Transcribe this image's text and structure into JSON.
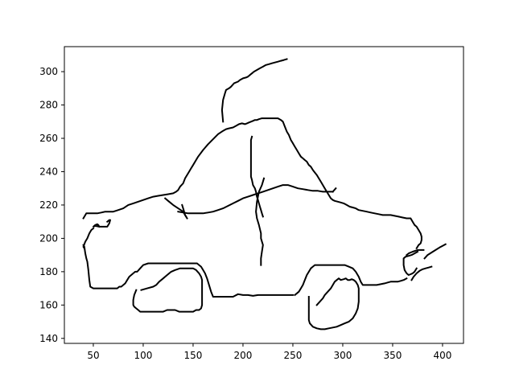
{
  "chart_data": {
    "type": "line",
    "title": "",
    "xlabel": "",
    "ylabel": "",
    "xlim": [
      21,
      421
    ],
    "ylim": [
      137,
      315
    ],
    "grid": false,
    "legend": "none",
    "line_color": "#000000",
    "x_ticks": [
      50,
      100,
      150,
      200,
      250,
      300,
      350,
      400
    ],
    "y_ticks": [
      140,
      160,
      180,
      200,
      220,
      240,
      260,
      280,
      300
    ],
    "x_tick_labels": [
      "50",
      "100",
      "150",
      "200",
      "250",
      "300",
      "350",
      "400"
    ],
    "y_tick_labels": [
      "140",
      "160",
      "180",
      "200",
      "220",
      "240",
      "260",
      "280",
      "300"
    ],
    "series": [
      {
        "x": [
          180,
          179,
          180,
          182,
          183,
          186,
          188,
          191,
          195,
          197,
          200,
          203,
          205,
          207,
          209,
          211,
          214,
          217,
          220,
          223,
          226,
          229,
          232,
          235,
          238,
          241,
          244
        ],
        "y": [
          270,
          277,
          283,
          287,
          289,
          290,
          291,
          293,
          294,
          295,
          296,
          296.5,
          297,
          298,
          299,
          300,
          301,
          302,
          303,
          304,
          304.5,
          305,
          305.5,
          306,
          306.5,
          307,
          307.5
        ]
      },
      {
        "x": [
          40,
          43,
          46,
          50,
          54,
          58,
          62,
          66,
          70,
          75,
          80,
          85,
          90,
          95,
          100,
          105,
          110,
          115,
          120,
          125,
          130,
          133,
          135,
          137,
          140,
          142,
          144,
          146,
          148,
          150,
          155,
          160,
          165,
          170,
          175,
          180,
          183,
          186,
          190,
          193,
          196,
          199,
          202,
          204,
          206,
          208,
          210,
          212,
          214,
          216,
          219,
          221,
          223,
          226,
          229,
          232,
          235,
          238,
          240,
          242,
          244,
          246,
          248,
          250,
          252,
          254,
          256,
          258,
          260,
          262,
          264,
          266,
          268,
          270,
          272,
          274,
          276,
          278,
          280,
          282,
          284,
          286,
          288,
          290,
          292,
          295,
          298,
          301,
          304,
          307,
          310,
          313,
          316,
          320,
          324,
          328,
          332,
          336,
          340,
          344,
          348,
          352,
          356,
          360,
          364,
          368,
          370,
          372,
          374,
          376,
          378,
          379,
          379,
          378,
          376,
          374
        ],
        "y": [
          212,
          215,
          215,
          215,
          215,
          215.5,
          216,
          216,
          216,
          217,
          218,
          220,
          221,
          222,
          223,
          224,
          225,
          225.5,
          226,
          226.5,
          227,
          228,
          229,
          231,
          233,
          236,
          238,
          240,
          242,
          244,
          249,
          253,
          256.5,
          259.5,
          262.5,
          264.5,
          265.5,
          266,
          266.5,
          267.5,
          268.5,
          269,
          268.5,
          269,
          269.5,
          270,
          270.5,
          271,
          271,
          271.5,
          272,
          272,
          272,
          272,
          272,
          272,
          272,
          271,
          270,
          267,
          264,
          262,
          259,
          257,
          255,
          253,
          251,
          249,
          248,
          247,
          246,
          244,
          243,
          241,
          239.5,
          238,
          236,
          234,
          232,
          230,
          228,
          226,
          224,
          223,
          222.5,
          222,
          221.5,
          221,
          220,
          219,
          218.5,
          218,
          217,
          216.5,
          216,
          215.5,
          215,
          214.5,
          214,
          214,
          214,
          213.5,
          213,
          212.5,
          212,
          212,
          210,
          208,
          207,
          205,
          203,
          201,
          199,
          197,
          196,
          194
        ]
      },
      {
        "x": [
          375,
          372,
          369,
          366,
          363,
          361,
          361,
          362,
          364,
          366,
          368,
          370,
          372,
          374
        ],
        "y": [
          192,
          191,
          190,
          189.5,
          189,
          188,
          184,
          181,
          179,
          178,
          178.5,
          179,
          180,
          182
        ]
      },
      {
        "x": [
          381,
          375,
          370,
          366,
          364
        ],
        "y": [
          193,
          193,
          192,
          191,
          190
        ]
      },
      {
        "x": [
          382,
          385,
          389,
          393,
          397,
          400,
          403
        ],
        "y": [
          188,
          190,
          191.5,
          193,
          194.5,
          195.5,
          196.5
        ]
      },
      {
        "x": [
          369,
          371,
          374,
          377,
          380,
          383,
          386,
          389
        ],
        "y": [
          175,
          177,
          179,
          180.5,
          181.5,
          182,
          182.5,
          183
        ]
      },
      {
        "x": [
          364,
          361,
          358,
          355,
          351,
          348,
          345,
          342,
          338,
          334,
          330,
          326,
          322,
          320,
          318,
          316,
          313,
          310,
          306,
          302,
          298,
          294,
          290,
          286,
          282,
          278,
          275,
          272,
          270,
          268,
          266,
          264,
          262,
          260,
          258,
          256,
          254,
          252
        ],
        "y": [
          176,
          175,
          174.5,
          174,
          174,
          174,
          173.5,
          173,
          172.5,
          172,
          172,
          172,
          172,
          172,
          174,
          177,
          180,
          182,
          183,
          184,
          184,
          184,
          184,
          184,
          184,
          184,
          184,
          184,
          183,
          182,
          180,
          178,
          175,
          172,
          170,
          168,
          167,
          166
        ]
      },
      {
        "x": [
          250,
          245,
          240,
          235,
          230,
          225,
          220,
          215,
          210,
          205,
          200,
          195,
          190,
          185,
          180,
          175,
          170,
          168,
          166,
          164,
          162,
          160,
          158,
          156,
          154,
          152,
          150,
          145,
          140,
          135,
          130,
          125,
          120,
          115,
          110,
          105,
          100,
          97,
          94,
          92,
          90,
          88,
          86,
          84,
          82,
          80,
          78,
          76,
          74,
          70,
          65,
          60,
          55,
          50,
          47,
          46,
          45,
          44,
          43,
          42,
          41,
          40
        ],
        "y": [
          166,
          166,
          166,
          166,
          166,
          166,
          166,
          166,
          165.5,
          166,
          166,
          166.5,
          165,
          165,
          165,
          165,
          165,
          168,
          172,
          176,
          179,
          181,
          183,
          184,
          185,
          185,
          185,
          185,
          185,
          185,
          185,
          185,
          185,
          185,
          185,
          185,
          184,
          182,
          180,
          180,
          179,
          178,
          177,
          175,
          173,
          172,
          171,
          171,
          170,
          170,
          170,
          170,
          170,
          170,
          171,
          175,
          181,
          186,
          188,
          191,
          195,
          196
        ]
      },
      {
        "x": [
          50,
          48,
          46,
          44,
          42,
          40,
          41
        ],
        "y": [
          206,
          205,
          203,
          200,
          198,
          195,
          194
        ]
      },
      {
        "x": [
          56,
          55,
          54,
          52,
          50,
          52,
          56,
          60,
          64,
          66,
          67,
          66,
          64
        ],
        "y": [
          207,
          208,
          208.5,
          208,
          207,
          207.5,
          207,
          207,
          207,
          209,
          211,
          211,
          210
        ]
      },
      {
        "x": [
          218,
          218,
          219,
          220,
          218,
          218,
          216,
          214,
          213,
          214,
          216,
          219,
          221
        ],
        "y": [
          184,
          188,
          192,
          196,
          200,
          203,
          208,
          212,
          216,
          222,
          228,
          232,
          236
        ]
      },
      {
        "x": [
          209,
          208,
          208,
          208,
          208,
          208,
          208,
          208,
          209,
          210,
          212,
          213,
          214,
          215,
          216,
          217,
          218,
          219,
          220
        ],
        "y": [
          261,
          259,
          255,
          250,
          245,
          240,
          238,
          237,
          235,
          232,
          230,
          228,
          225,
          223,
          221,
          219,
          217,
          215,
          213
        ]
      },
      {
        "x": [
          135,
          145,
          150,
          155,
          160,
          165,
          170,
          175,
          180,
          185,
          190,
          195,
          200,
          205,
          210,
          215,
          220,
          225,
          230,
          235,
          240,
          245,
          250,
          255,
          260,
          265,
          270,
          275,
          280,
          285,
          290
        ],
        "y": [
          216,
          215,
          215,
          215,
          215,
          215.5,
          216,
          217,
          218,
          219.5,
          221,
          222.5,
          224,
          225,
          226,
          227,
          228,
          229,
          230,
          231,
          232,
          232,
          231,
          230,
          229.5,
          229,
          228.5,
          228.5,
          228,
          228,
          228
        ]
      },
      {
        "x": [
          290,
          293
        ],
        "y": [
          228,
          230
        ]
      },
      {
        "x": [
          122,
          126,
          130,
          135,
          140,
          142,
          144
        ],
        "y": [
          224,
          222,
          220,
          218,
          216,
          214,
          212
        ]
      },
      {
        "x": [
          139,
          140,
          141,
          142,
          143
        ],
        "y": [
          220,
          218,
          216,
          214,
          213
        ]
      },
      {
        "x": [
          98,
          104,
          110,
          113,
          116,
          120,
          124,
          128,
          132,
          137,
          140,
          145,
          150,
          153,
          156,
          158,
          159,
          159,
          159,
          159,
          159,
          158,
          156,
          153,
          150,
          145,
          140,
          136,
          132,
          128,
          124,
          120,
          115,
          110,
          105,
          100,
          97,
          95,
          93,
          91,
          90,
          90,
          91,
          93
        ],
        "y": [
          169,
          170,
          171,
          172,
          174,
          176,
          178,
          180,
          181,
          182,
          182,
          182,
          182,
          181,
          179,
          177,
          175,
          172,
          168,
          164,
          160,
          158,
          157,
          157,
          156,
          156,
          156,
          156,
          157,
          157,
          157,
          156,
          156,
          156,
          156,
          156,
          156,
          157,
          158,
          159,
          160,
          163,
          166,
          169
        ]
      },
      {
        "x": [
          266,
          266,
          266,
          266,
          267,
          270,
          274,
          278,
          282,
          286,
          290,
          294,
          298,
          302,
          306,
          310,
          313,
          315,
          316,
          316,
          316,
          315,
          313,
          311,
          309,
          307,
          305,
          303,
          301,
          298,
          296,
          294,
          292,
          290,
          288,
          285,
          282,
          280,
          277,
          274
        ],
        "y": [
          165,
          160,
          155,
          151,
          149,
          147,
          146,
          145.5,
          145.5,
          146,
          146.5,
          147,
          148,
          149,
          150,
          152,
          155,
          158,
          162,
          166,
          170,
          172,
          174,
          175,
          175.5,
          175,
          175,
          176,
          175.5,
          175,
          176,
          175,
          174,
          172,
          170,
          168,
          166,
          164,
          162,
          160
        ]
      }
    ]
  }
}
